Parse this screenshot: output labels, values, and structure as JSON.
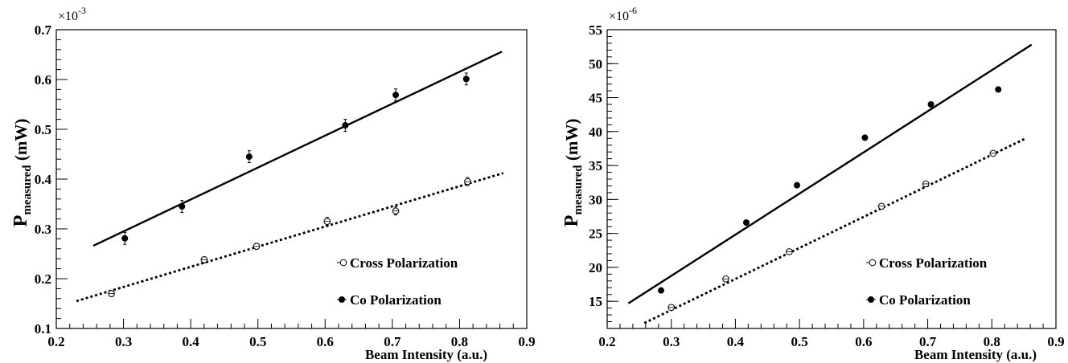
{
  "chart_data": [
    {
      "type": "scatter",
      "xlabel": "Beam Intensity (a.u.)",
      "ylabel_main": "P",
      "ylabel_sub": "measured",
      "ylabel_unit": "(mW)",
      "multiplier": "×10",
      "multiplier_exp": "-3",
      "xlim": [
        0.2,
        0.9
      ],
      "ylim": [
        0.1,
        0.7
      ],
      "x_ticks": [
        "0.2",
        "0.3",
        "0.4",
        "0.5",
        "0.6",
        "0.7",
        "0.8",
        "0.9"
      ],
      "y_ticks": [
        "0.1",
        "0.2",
        "0.3",
        "0.4",
        "0.5",
        "0.6",
        "0.7"
      ],
      "legend_position": "bottom-right",
      "series": [
        {
          "name": "Cross Polarization",
          "marker": "open-circle",
          "x": [
            0.282,
            0.42,
            0.498,
            0.603,
            0.705,
            0.812
          ],
          "y": [
            0.17,
            0.238,
            0.265,
            0.315,
            0.336,
            0.395
          ],
          "err": [
            0.006,
            0.006,
            0.006,
            0.008,
            0.008,
            0.008
          ],
          "fit": {
            "style": "dotted",
            "x": [
              0.23,
              0.865
            ],
            "y": [
              0.155,
              0.412
            ]
          }
        },
        {
          "name": "Co Polarization",
          "marker": "filled-circle",
          "x": [
            0.302,
            0.387,
            0.487,
            0.63,
            0.705,
            0.81
          ],
          "y": [
            0.281,
            0.345,
            0.445,
            0.508,
            0.569,
            0.601
          ],
          "err": [
            0.012,
            0.012,
            0.012,
            0.012,
            0.012,
            0.012
          ],
          "fit": {
            "style": "solid",
            "x": [
              0.255,
              0.863
            ],
            "y": [
              0.266,
              0.656
            ]
          }
        }
      ]
    },
    {
      "type": "scatter",
      "xlabel": "Beam Intensity (a.u.)",
      "ylabel_main": "P",
      "ylabel_sub": "measured",
      "ylabel_unit": "(mW)",
      "multiplier": "×10",
      "multiplier_exp": "-6",
      "xlim": [
        0.2,
        0.9
      ],
      "ylim": [
        11,
        55
      ],
      "x_ticks": [
        "0.2",
        "0.3",
        "0.4",
        "0.5",
        "0.6",
        "0.7",
        "0.8",
        "0.9"
      ],
      "y_ticks": [
        "15",
        "20",
        "25",
        "30",
        "35",
        "40",
        "45",
        "50",
        "55"
      ],
      "legend_position": "bottom-right",
      "series": [
        {
          "name": "Cross Polarization",
          "marker": "open-circle",
          "x": [
            0.3,
            0.385,
            0.484,
            0.628,
            0.697,
            0.802
          ],
          "y": [
            14.1,
            18.3,
            22.3,
            29.0,
            32.3,
            36.8
          ],
          "fit": {
            "style": "dotted",
            "x": [
              0.258,
              0.853
            ],
            "y": [
              11.8,
              39.0
            ]
          }
        },
        {
          "name": "Co Polarization",
          "marker": "filled-circle",
          "x": [
            0.284,
            0.417,
            0.496,
            0.602,
            0.705,
            0.81
          ],
          "y": [
            16.6,
            26.6,
            32.1,
            39.1,
            44.0,
            46.2
          ],
          "fit": {
            "style": "solid",
            "x": [
              0.233,
              0.862
            ],
            "y": [
              14.7,
              52.8
            ]
          }
        }
      ]
    }
  ]
}
